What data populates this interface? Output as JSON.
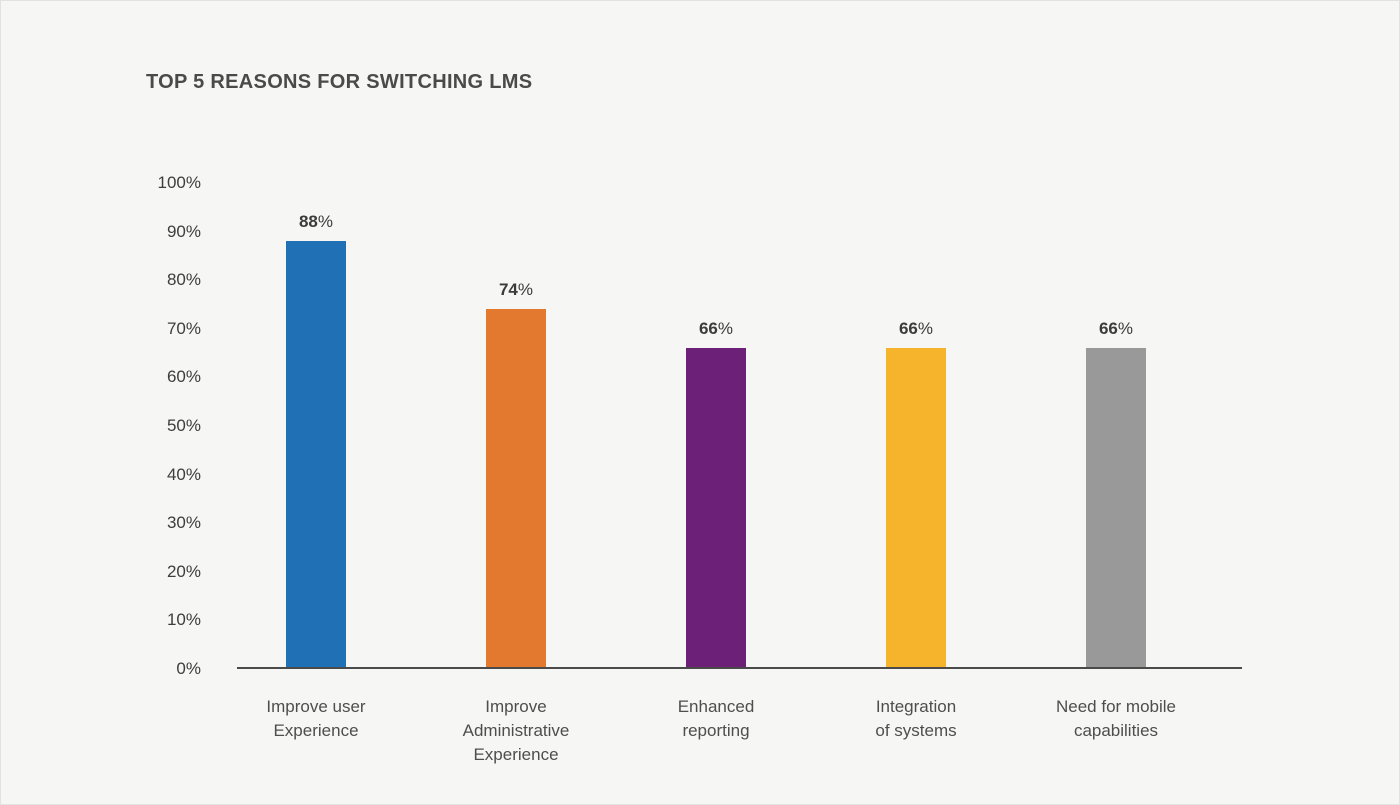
{
  "page": {
    "background_color": "#f6f6f5"
  },
  "chart_data": {
    "type": "bar",
    "title": "TOP 5 REASONS FOR SWITCHING LMS",
    "categories": [
      "Improve user\nExperience",
      "Improve\nAdministrative\nExperience",
      "Enhanced\nreporting",
      "Integration\nof systems",
      "Need for mobile\ncapabilities"
    ],
    "values": [
      88,
      74,
      66,
      66,
      66
    ],
    "value_suffix": "%",
    "bar_colors": [
      "#1f70b5",
      "#e2792f",
      "#6d2077",
      "#f6b42c",
      "#999999"
    ],
    "y_ticks": [
      100,
      90,
      80,
      70,
      60,
      50,
      40,
      30,
      20,
      10,
      0
    ],
    "y_tick_suffix": "%",
    "ylim": [
      0,
      100
    ],
    "grid": false,
    "legend": false,
    "xlabel": "",
    "ylabel": "",
    "title_color": "#4a4a4a",
    "tick_text_color": "#3d3d3d",
    "category_text_color": "#4e4e4e",
    "value_label_color": "#3b3b3b",
    "axis_line_color": "#4a4a4a"
  }
}
